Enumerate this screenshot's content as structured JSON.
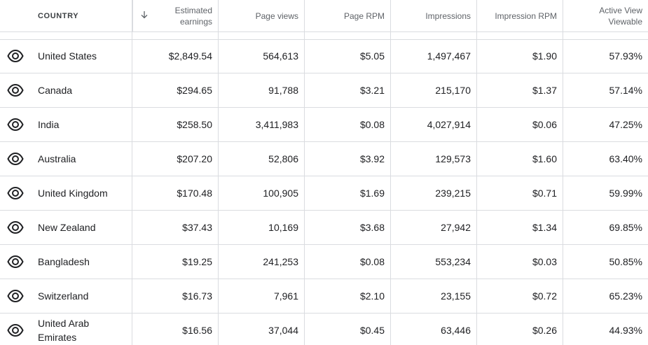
{
  "header": {
    "country": "COUNTRY",
    "sort_icon": "arrow-down-icon",
    "estimated_earnings": [
      "Estimated",
      "earnings"
    ],
    "page_views": "Page views",
    "page_rpm": "Page RPM",
    "impressions": "Impressions",
    "impression_rpm": "Impression RPM",
    "active_view": [
      "Active View",
      "Viewable"
    ]
  },
  "row_icon": "eye-icon",
  "rows": [
    {
      "country": "United States",
      "earnings": "$2,849.54",
      "page_views": "564,613",
      "page_rpm": "$5.05",
      "impressions": "1,497,467",
      "impression_rpm": "$1.90",
      "viewable": "57.93%"
    },
    {
      "country": "Canada",
      "earnings": "$294.65",
      "page_views": "91,788",
      "page_rpm": "$3.21",
      "impressions": "215,170",
      "impression_rpm": "$1.37",
      "viewable": "57.14%"
    },
    {
      "country": "India",
      "earnings": "$258.50",
      "page_views": "3,411,983",
      "page_rpm": "$0.08",
      "impressions": "4,027,914",
      "impression_rpm": "$0.06",
      "viewable": "47.25%"
    },
    {
      "country": "Australia",
      "earnings": "$207.20",
      "page_views": "52,806",
      "page_rpm": "$3.92",
      "impressions": "129,573",
      "impression_rpm": "$1.60",
      "viewable": "63.40%"
    },
    {
      "country": "United Kingdom",
      "earnings": "$170.48",
      "page_views": "100,905",
      "page_rpm": "$1.69",
      "impressions": "239,215",
      "impression_rpm": "$0.71",
      "viewable": "59.99%"
    },
    {
      "country": "New Zealand",
      "earnings": "$37.43",
      "page_views": "10,169",
      "page_rpm": "$3.68",
      "impressions": "27,942",
      "impression_rpm": "$1.34",
      "viewable": "69.85%"
    },
    {
      "country": "Bangladesh",
      "earnings": "$19.25",
      "page_views": "241,253",
      "page_rpm": "$0.08",
      "impressions": "553,234",
      "impression_rpm": "$0.03",
      "viewable": "50.85%"
    },
    {
      "country": "Switzerland",
      "earnings": "$16.73",
      "page_views": "7,961",
      "page_rpm": "$2.10",
      "impressions": "23,155",
      "impression_rpm": "$0.72",
      "viewable": "65.23%"
    },
    {
      "country": "United Arab Emirates",
      "country_lines": [
        "United Arab",
        "Emirates"
      ],
      "earnings": "$16.56",
      "page_views": "37,044",
      "page_rpm": "$0.45",
      "impressions": "63,446",
      "impression_rpm": "$0.26",
      "viewable": "44.93%"
    }
  ]
}
